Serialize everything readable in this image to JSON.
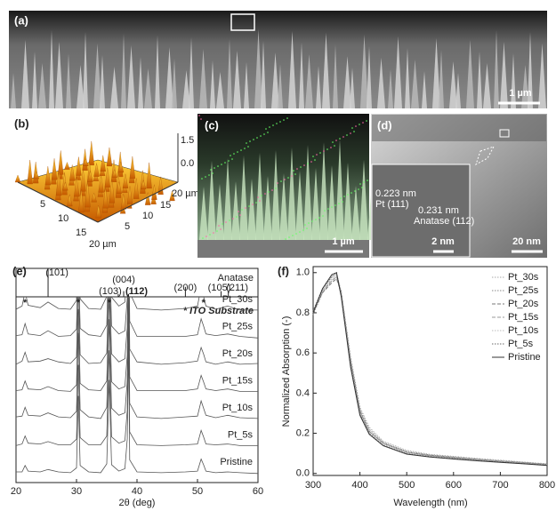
{
  "panels": {
    "a": {
      "label": "(a)",
      "scale_bar": "1 µm"
    },
    "b": {
      "label": "(b)",
      "z_ticks": [
        "1.5 µm",
        "0.0"
      ],
      "front_ticks": [
        "5",
        "10",
        "15",
        "20 µm"
      ],
      "side_ticks": [
        "5",
        "10",
        "15",
        "20 µm"
      ]
    },
    "c": {
      "label": "(c)",
      "scale_bar": "1 µm"
    },
    "d": {
      "label": "(d)",
      "inset_texts": [
        "0.223 nm",
        "Pt (111)",
        "0.231 nm",
        "Anatase (112)"
      ],
      "inset_scale_bar": "2 nm",
      "scale_bar": "20 nm"
    }
  },
  "chart_data": [
    {
      "type": "line",
      "panel_label": "(e)",
      "xlabel": "2θ (deg)",
      "xlim": [
        20,
        60
      ],
      "xticks": [
        20,
        30,
        40,
        50,
        60
      ],
      "reference_title": "Anatase",
      "reference_peaks": [
        {
          "label": "(101)",
          "x": 25.3,
          "intensity": 100
        },
        {
          "label": "(004)",
          "x": 37.8,
          "intensity": 20
        },
        {
          "label": "(103)",
          "x": 36.9,
          "intensity": 10
        },
        {
          "label": "(112)",
          "x": 38.6,
          "intensity": 10
        },
        {
          "label": "(200)",
          "x": 48.0,
          "intensity": 35
        },
        {
          "label": "(105)",
          "x": 53.9,
          "intensity": 20
        },
        {
          "label": "(211)",
          "x": 55.1,
          "intensity": 20
        }
      ],
      "substrate_note": "* ITO Substrate",
      "substrate_peaks": [
        {
          "x": 21.5,
          "label": "*"
        },
        {
          "x": 30.3,
          "label": "*"
        },
        {
          "x": 35.4,
          "label": "*"
        },
        {
          "x": 51.0,
          "label": "*"
        }
      ],
      "x": [
        20,
        21,
        21.5,
        22,
        24,
        25.3,
        27,
        29,
        30,
        30.3,
        30.6,
        32,
        34,
        35,
        35.4,
        35.8,
        37,
        38,
        38.4,
        38.6,
        38.8,
        40,
        44,
        48,
        50,
        50.6,
        51,
        51.4,
        53,
        55,
        57,
        60
      ],
      "series": [
        {
          "name": "Pt_30s",
          "color": "#555555",
          "values": [
            1.0,
            1.4,
            3.2,
            1.5,
            1.2,
            1.9,
            1.1,
            1.0,
            2.1,
            12.5,
            2.3,
            1.1,
            1.0,
            2.6,
            14,
            2.5,
            1.4,
            1.9,
            6.2,
            15,
            3.1,
            1.1,
            0.9,
            1.1,
            1.4,
            3.8,
            2.6,
            1.4,
            1.0,
            1.4,
            0.9,
            0.9
          ]
        },
        {
          "name": "Pt_25s",
          "color": "#555555",
          "values": [
            1.1,
            1.2,
            2.6,
            1.3,
            1.1,
            1.7,
            1.0,
            1.1,
            1.9,
            11.8,
            2.0,
            1.2,
            1.0,
            2.4,
            13.5,
            2.3,
            1.3,
            1.7,
            5.8,
            15.5,
            2.9,
            1.0,
            1.0,
            1.0,
            1.2,
            3.2,
            2.3,
            1.3,
            1.1,
            1.3,
            1.0,
            0.8
          ]
        },
        {
          "name": "Pt_20s",
          "color": "#555555",
          "values": [
            0.9,
            1.3,
            2.4,
            1.2,
            1.3,
            1.6,
            1.2,
            1.0,
            1.8,
            11.5,
            2.1,
            1.0,
            1.1,
            2.3,
            13.2,
            2.2,
            1.2,
            1.6,
            5.6,
            15.8,
            2.8,
            1.2,
            0.9,
            1.1,
            1.3,
            3.0,
            2.2,
            1.2,
            0.9,
            1.2,
            0.9,
            1.0
          ]
        },
        {
          "name": "Pt_15s",
          "color": "#555555",
          "values": [
            1.0,
            1.1,
            2.2,
            1.2,
            1.1,
            1.5,
            1.0,
            0.9,
            1.7,
            11.2,
            1.9,
            1.1,
            1.0,
            2.2,
            13.0,
            2.1,
            1.2,
            1.5,
            5.5,
            16,
            2.7,
            1.0,
            1.0,
            1.0,
            1.2,
            2.9,
            2.1,
            1.2,
            1.0,
            1.2,
            0.9,
            0.9
          ]
        },
        {
          "name": "Pt_10s",
          "color": "#555555",
          "values": [
            1.1,
            1.2,
            2.3,
            1.3,
            1.2,
            1.6,
            1.1,
            1.0,
            1.8,
            11.6,
            2.0,
            1.1,
            0.9,
            2.3,
            13.3,
            2.2,
            1.3,
            1.6,
            5.7,
            16.2,
            2.8,
            1.1,
            0.9,
            1.1,
            1.2,
            3.1,
            2.2,
            1.3,
            1.0,
            1.3,
            1.0,
            0.9
          ]
        },
        {
          "name": "Pt_5s",
          "color": "#555555",
          "values": [
            0.9,
            1.1,
            2.1,
            1.2,
            1.1,
            1.4,
            1.0,
            1.0,
            1.7,
            11.0,
            1.9,
            1.0,
            1.0,
            2.1,
            12.8,
            2.0,
            1.2,
            1.5,
            5.4,
            16.4,
            2.6,
            1.0,
            0.9,
            1.0,
            1.1,
            2.8,
            2.0,
            1.1,
            1.0,
            1.1,
            0.9,
            0.9
          ]
        },
        {
          "name": "Pristine",
          "color": "#555555",
          "values": [
            1.0,
            1.0,
            1.8,
            1.1,
            1.0,
            1.3,
            1.0,
            0.9,
            1.5,
            10.5,
            1.8,
            1.0,
            0.9,
            2.0,
            12.5,
            1.9,
            1.1,
            1.4,
            5.2,
            17,
            2.5,
            1.0,
            0.9,
            1.0,
            1.1,
            2.6,
            1.9,
            1.1,
            0.9,
            1.0,
            0.9,
            0.8
          ]
        }
      ]
    },
    {
      "type": "line",
      "panel_label": "(f)",
      "xlabel": "Wavelength (nm)",
      "ylabel": "Normalized Absorption (-)",
      "xlim": [
        300,
        800
      ],
      "xticks": [
        300,
        400,
        500,
        600,
        700,
        800
      ],
      "ylim": [
        -0.01,
        1.03
      ],
      "yticks": [
        {
          "value": 0,
          "label": "0.0"
        },
        0.2,
        0.4,
        0.6,
        0.8,
        {
          "value": 1,
          "label": "1.0"
        }
      ],
      "legend": "upper right",
      "x": [
        300,
        320,
        340,
        350,
        360,
        380,
        400,
        420,
        450,
        500,
        550,
        600,
        650,
        700,
        750,
        800
      ],
      "series": [
        {
          "name": "Pt_30s",
          "color": "#aaaaaa",
          "style": "dotted",
          "values": [
            0.8,
            0.91,
            0.97,
            0.99,
            0.91,
            0.58,
            0.33,
            0.23,
            0.16,
            0.115,
            0.095,
            0.085,
            0.075,
            0.066,
            0.057,
            0.048
          ]
        },
        {
          "name": "Pt_25s",
          "color": "#888888",
          "style": "dotted",
          "values": [
            0.79,
            0.9,
            0.96,
            0.98,
            0.9,
            0.57,
            0.32,
            0.22,
            0.155,
            0.11,
            0.092,
            0.082,
            0.072,
            0.063,
            0.055,
            0.046
          ]
        },
        {
          "name": "Pt_20s",
          "color": "#777777",
          "style": "dashed",
          "values": [
            0.8,
            0.9,
            0.95,
            0.97,
            0.9,
            0.56,
            0.31,
            0.21,
            0.15,
            0.105,
            0.09,
            0.08,
            0.07,
            0.061,
            0.053,
            0.045
          ]
        },
        {
          "name": "Pt_15s",
          "color": "#999999",
          "style": "dashed",
          "values": [
            0.81,
            0.91,
            0.96,
            0.98,
            0.89,
            0.56,
            0.31,
            0.21,
            0.15,
            0.105,
            0.088,
            0.078,
            0.068,
            0.06,
            0.052,
            0.044
          ]
        },
        {
          "name": "Pt_10s",
          "color": "#bbbbbb",
          "style": "dotted",
          "values": [
            0.8,
            0.91,
            0.98,
            0.99,
            0.9,
            0.55,
            0.3,
            0.205,
            0.145,
            0.1,
            0.086,
            0.076,
            0.066,
            0.058,
            0.05,
            0.043
          ]
        },
        {
          "name": "Pt_5s",
          "color": "#666666",
          "style": "dotted",
          "values": [
            0.81,
            0.92,
            0.98,
            1.0,
            0.89,
            0.54,
            0.295,
            0.2,
            0.14,
            0.098,
            0.084,
            0.074,
            0.064,
            0.057,
            0.049,
            0.042
          ]
        },
        {
          "name": "Pristine",
          "color": "#333333",
          "style": "solid",
          "values": [
            0.8,
            0.92,
            0.99,
            1.0,
            0.88,
            0.53,
            0.29,
            0.195,
            0.138,
            0.096,
            0.082,
            0.072,
            0.063,
            0.055,
            0.048,
            0.04
          ]
        }
      ]
    }
  ]
}
